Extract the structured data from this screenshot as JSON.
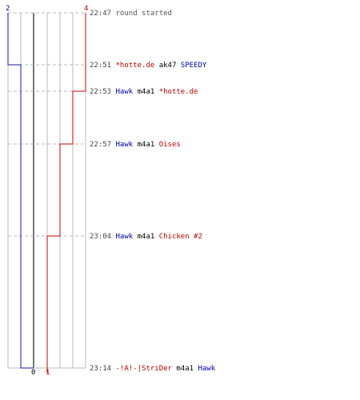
{
  "colors": {
    "team_blue": "#1a1aaa",
    "team_red": "#cc0000",
    "grid": "#bbbbbb",
    "dashed": "#bbbbbb",
    "time_text": "#444444"
  },
  "top_counts": {
    "blue": "2",
    "red": "4"
  },
  "bottom_counts": {
    "blue": "0",
    "red": "1"
  },
  "events": [
    {
      "time": "22:47",
      "parts": [
        {
          "text": "round started",
          "team": "none"
        }
      ]
    },
    {
      "time": "22:51",
      "parts": [
        {
          "text": "*hotte.de",
          "team": "red"
        },
        {
          "text": "ak47",
          "team": "neutral"
        },
        {
          "text": "SPEEDY",
          "team": "blue"
        }
      ]
    },
    {
      "time": "22:53",
      "parts": [
        {
          "text": "Hawk",
          "team": "blue"
        },
        {
          "text": "m4a1",
          "team": "neutral"
        },
        {
          "text": "*hotte.de",
          "team": "red"
        }
      ]
    },
    {
      "time": "22:57",
      "parts": [
        {
          "text": "Hawk",
          "team": "blue"
        },
        {
          "text": "m4a1",
          "team": "neutral"
        },
        {
          "text": "Oises",
          "team": "red"
        }
      ]
    },
    {
      "time": "23:04",
      "parts": [
        {
          "text": "Hawk",
          "team": "blue"
        },
        {
          "text": "m4a1",
          "team": "neutral"
        },
        {
          "text": "Chicken #2",
          "team": "red"
        }
      ]
    },
    {
      "time": "23:14",
      "parts": [
        {
          "text": "-!A!-|StriDer",
          "team": "red"
        },
        {
          "text": "m4a1",
          "team": "neutral"
        },
        {
          "text": "Hawk",
          "team": "blue"
        }
      ]
    }
  ]
}
